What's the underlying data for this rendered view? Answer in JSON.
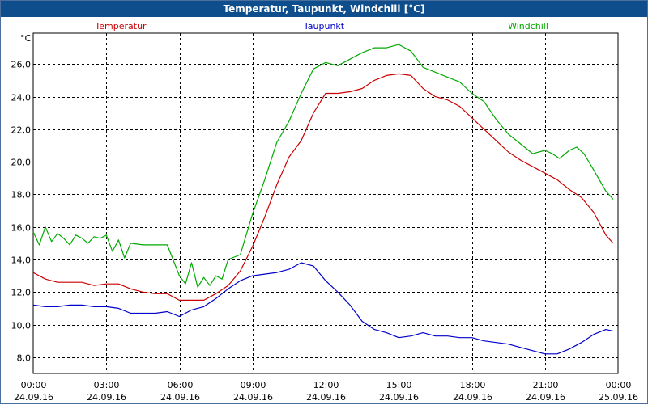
{
  "window": {
    "title": "Temperatur, Taupunkt, Windchill [°C]"
  },
  "chart_data": {
    "type": "line",
    "title": "Temperatur, Taupunkt, Windchill [°C]",
    "ylabel": "°C",
    "xlabel": "",
    "ylim": [
      7.0,
      27.9
    ],
    "xlim_hours": [
      0,
      24
    ],
    "grid": true,
    "yticks": [
      "8,0",
      "10,0",
      "12,0",
      "14,0",
      "16,0",
      "18,0",
      "20,0",
      "22,0",
      "24,0",
      "26,0"
    ],
    "ytick_values": [
      8,
      10,
      12,
      14,
      16,
      18,
      20,
      22,
      24,
      26
    ],
    "xticks": [
      {
        "time": "00:00",
        "date": "24.09.16"
      },
      {
        "time": "03:00",
        "date": "24.09.16"
      },
      {
        "time": "06:00",
        "date": "24.09.16"
      },
      {
        "time": "09:00",
        "date": "24.09.16"
      },
      {
        "time": "12:00",
        "date": "24.09.16"
      },
      {
        "time": "15:00",
        "date": "24.09.16"
      },
      {
        "time": "18:00",
        "date": "24.09.16"
      },
      {
        "time": "21:00",
        "date": "24.09.16"
      },
      {
        "time": "00:00",
        "date": "25.09.16"
      }
    ],
    "series": [
      {
        "name": "Temperatur",
        "color": "#cc0000",
        "x": [
          0,
          0.5,
          1,
          1.5,
          2,
          2.5,
          3,
          3.5,
          4,
          4.5,
          5,
          5.5,
          6,
          6.5,
          7,
          7.5,
          8,
          8.5,
          9,
          9.5,
          10,
          10.5,
          11,
          11.5,
          12,
          12.5,
          13,
          13.5,
          14,
          14.5,
          15,
          15.5,
          16,
          16.5,
          17,
          17.5,
          18,
          18.5,
          19,
          19.5,
          20,
          20.5,
          21,
          21.5,
          22,
          22.5,
          23,
          23.5,
          23.8
        ],
        "values": [
          13.2,
          12.8,
          12.6,
          12.6,
          12.6,
          12.4,
          12.5,
          12.5,
          12.2,
          12.0,
          11.9,
          11.9,
          11.5,
          11.5,
          11.5,
          11.9,
          12.4,
          13.3,
          14.8,
          16.6,
          18.6,
          20.3,
          21.3,
          23.0,
          24.2,
          24.2,
          24.3,
          24.5,
          25.0,
          25.3,
          25.4,
          25.3,
          24.5,
          24.0,
          23.8,
          23.4,
          22.7,
          22.0,
          21.3,
          20.6,
          20.1,
          19.7,
          19.3,
          18.9,
          18.3,
          17.8,
          16.9,
          15.5,
          15.0
        ]
      },
      {
        "name": "Taupunkt",
        "color": "#0000cc",
        "x": [
          0,
          0.5,
          1,
          1.5,
          2,
          2.5,
          3,
          3.5,
          4,
          4.5,
          5,
          5.5,
          6,
          6.5,
          7,
          7.5,
          8,
          8.5,
          9,
          9.5,
          10,
          10.5,
          11,
          11.5,
          12,
          12.5,
          13,
          13.5,
          14,
          14.5,
          15,
          15.5,
          16,
          16.5,
          17,
          17.5,
          18,
          18.5,
          19,
          19.5,
          20,
          20.5,
          21,
          21.5,
          22,
          22.5,
          23,
          23.5,
          23.8
        ],
        "values": [
          11.2,
          11.1,
          11.1,
          11.2,
          11.2,
          11.1,
          11.1,
          11.0,
          10.7,
          10.7,
          10.7,
          10.8,
          10.5,
          10.9,
          11.1,
          11.6,
          12.2,
          12.7,
          13.0,
          13.1,
          13.2,
          13.4,
          13.8,
          13.6,
          12.7,
          12.0,
          11.2,
          10.2,
          9.7,
          9.5,
          9.2,
          9.3,
          9.5,
          9.3,
          9.3,
          9.2,
          9.2,
          9.0,
          8.9,
          8.8,
          8.6,
          8.4,
          8.2,
          8.2,
          8.5,
          8.9,
          9.4,
          9.7,
          9.6
        ]
      },
      {
        "name": "Windchill",
        "color": "#00aa00",
        "x": [
          0,
          0.25,
          0.5,
          0.75,
          1,
          1.25,
          1.5,
          1.75,
          2,
          2.25,
          2.5,
          2.75,
          3,
          3.25,
          3.5,
          3.75,
          4,
          4.5,
          5,
          5.5,
          6,
          6.25,
          6.5,
          6.75,
          7,
          7.25,
          7.5,
          7.75,
          8,
          8.5,
          9,
          9.5,
          10,
          10.5,
          11,
          11.5,
          12,
          12.5,
          13,
          13.5,
          14,
          14.5,
          15,
          15.5,
          16,
          16.5,
          17,
          17.5,
          18,
          18.5,
          19,
          19.5,
          20,
          20.5,
          21,
          21.3,
          21.6,
          22,
          22.3,
          22.6,
          23,
          23.5,
          23.8
        ],
        "values": [
          15.7,
          14.9,
          16.0,
          15.1,
          15.6,
          15.3,
          14.9,
          15.5,
          15.3,
          15.0,
          15.4,
          15.3,
          15.5,
          14.5,
          15.2,
          14.1,
          15.0,
          14.9,
          14.9,
          14.9,
          13.0,
          12.5,
          13.8,
          12.3,
          12.9,
          12.4,
          13.0,
          12.8,
          14.0,
          14.3,
          16.8,
          18.9,
          21.2,
          22.5,
          24.2,
          25.7,
          26.1,
          25.9,
          26.3,
          26.7,
          27.0,
          27.0,
          27.2,
          26.8,
          25.8,
          25.5,
          25.2,
          24.9,
          24.2,
          23.7,
          22.6,
          21.7,
          21.1,
          20.5,
          20.7,
          20.5,
          20.2,
          20.7,
          20.9,
          20.5,
          19.5,
          18.2,
          17.7
        ]
      }
    ]
  }
}
